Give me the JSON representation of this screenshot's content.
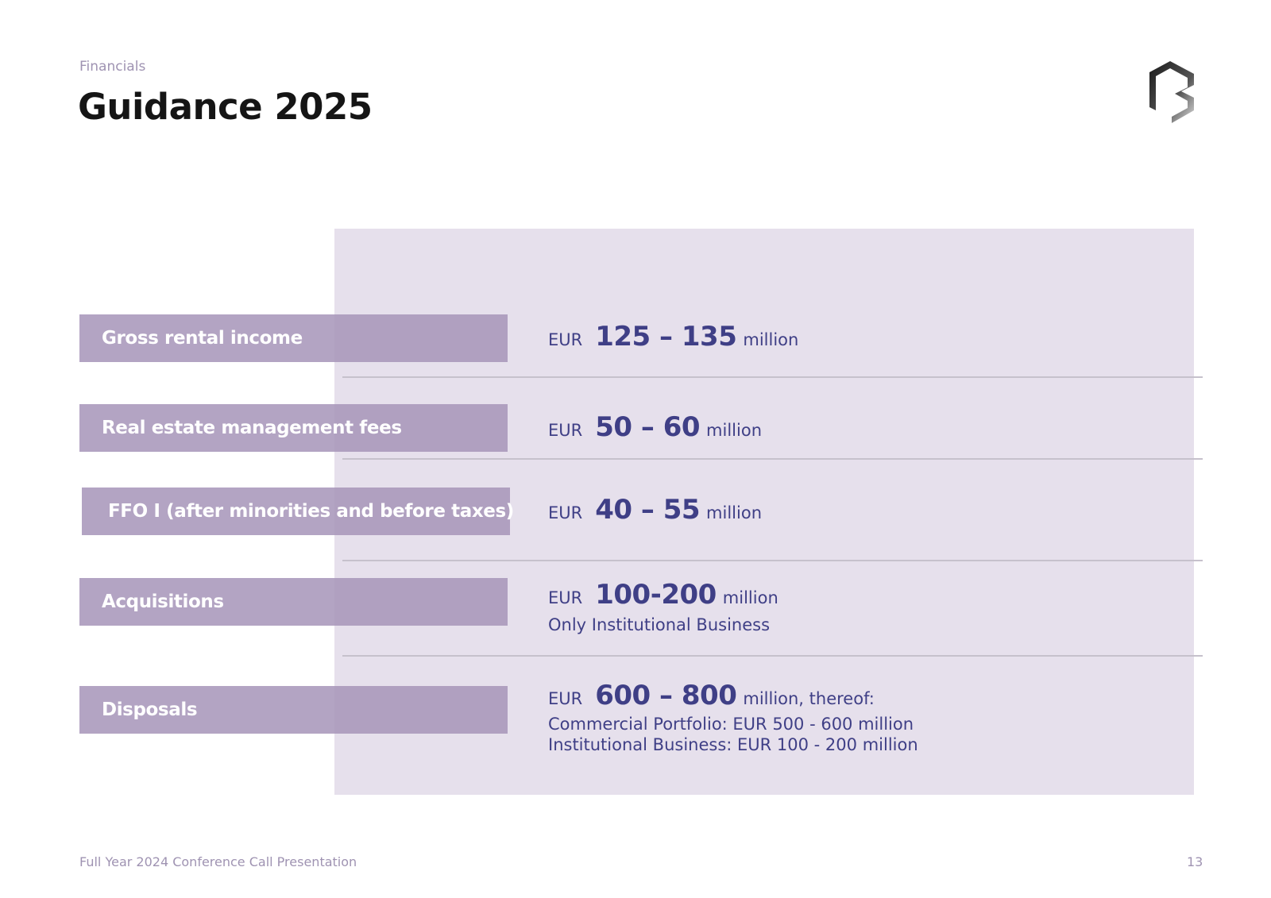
{
  "header": {
    "section": "Financials",
    "title": "Guidance 2025"
  },
  "rows": [
    {
      "label": "Gross rental income",
      "currency": "EUR",
      "range": "125 – 135",
      "unit": "million"
    },
    {
      "label": "Real estate management fees",
      "currency": "EUR",
      "range": "50 – 60",
      "unit": "million"
    },
    {
      "label": "FFO I (after minorities and before taxes)",
      "currency": "EUR",
      "range": "40 – 55",
      "unit": "million"
    },
    {
      "label": "Acquisitions",
      "currency": "EUR",
      "range": "100-200",
      "unit": "million",
      "notes": [
        "Only Institutional Business"
      ]
    },
    {
      "label": "Disposals",
      "currency": "EUR",
      "range": "600 – 800",
      "unit": "million, thereof:",
      "notes": [
        "Commercial Portfolio: EUR 500 - 600 million",
        "Institutional Business: EUR 100 - 200 million"
      ]
    }
  ],
  "footer": {
    "presentation": "Full Year 2024 Conference Call Presentation",
    "page": "13"
  },
  "colors": {
    "panel": "#e6e0ec",
    "label_box": "#a694b8",
    "value_text": "#3f3f86",
    "muted_text": "#9f93b2"
  },
  "logo": {
    "icon": "company-logo-icon"
  }
}
